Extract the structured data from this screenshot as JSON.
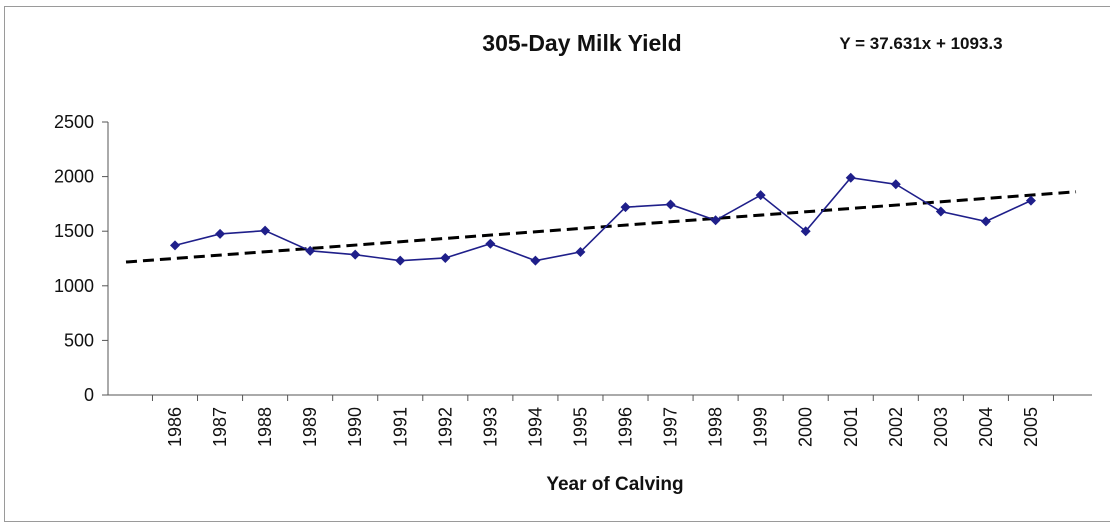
{
  "chart_data": {
    "type": "line",
    "title": "305-Day Milk Yield",
    "equation": "Y = 37.631x + 1093.3",
    "xlabel": "Year of Calving",
    "ylabel": "",
    "categories": [
      "1986",
      "1987",
      "1988",
      "1989",
      "1990",
      "1991",
      "1992",
      "1993",
      "1994",
      "1995",
      "1996",
      "1997",
      "1998",
      "1999",
      "2000",
      "2001",
      "2002",
      "2003",
      "2004",
      "2005"
    ],
    "series": [
      {
        "values": [
          1370,
          1475,
          1505,
          1320,
          1285,
          1230,
          1255,
          1385,
          1230,
          1310,
          1720,
          1745,
          1600,
          1830,
          1500,
          1990,
          1930,
          1680,
          1590,
          1780
        ],
        "color": "#1f1f8a",
        "marker": "diamond"
      }
    ],
    "trendline": {
      "slope": 37.631,
      "intercept": 1093.3,
      "style": "dashed",
      "color": "#000000"
    },
    "ylim": [
      0,
      2500
    ],
    "yticks": [
      0,
      500,
      1000,
      1500,
      2000,
      2500
    ],
    "grid": false,
    "legend": "none"
  }
}
